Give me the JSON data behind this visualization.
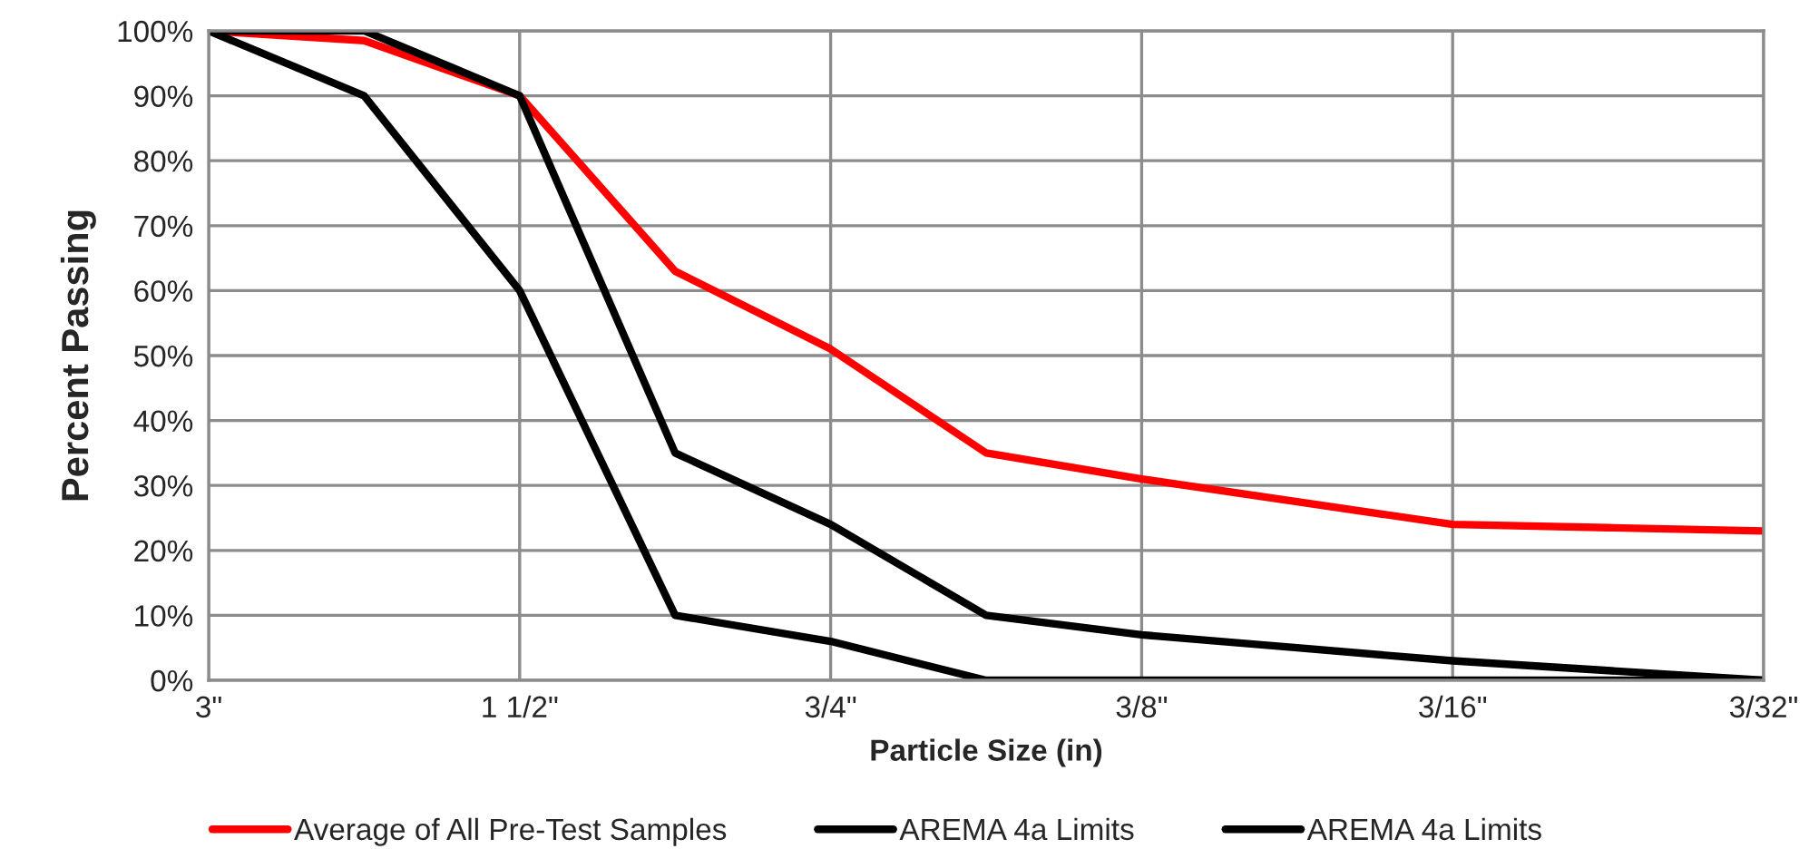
{
  "chart_data": {
    "type": "line",
    "xlabel": "Particle Size (in)",
    "ylabel": "Percent Passing",
    "categories": [
      "3\"",
      null,
      "1 1/2\"",
      null,
      "3/4\"",
      null,
      "3/8\"",
      null,
      "3/16\"",
      null,
      "3/32\""
    ],
    "ylim": [
      0,
      100
    ],
    "yticks": [
      {
        "value": 0,
        "label": "0%"
      },
      {
        "value": 10,
        "label": "10%"
      },
      {
        "value": 20,
        "label": "20%"
      },
      {
        "value": 30,
        "label": "30%"
      },
      {
        "value": 40,
        "label": "40%"
      },
      {
        "value": 50,
        "label": "50%"
      },
      {
        "value": 60,
        "label": "60%"
      },
      {
        "value": 70,
        "label": "70%"
      },
      {
        "value": 80,
        "label": "80%"
      },
      {
        "value": 90,
        "label": "90%"
      },
      {
        "value": 100,
        "label": "100%"
      }
    ],
    "grid": true,
    "legend": "bottom",
    "marker": "none",
    "line_style": "solid",
    "series": [
      {
        "name": "Average of All Pre-Test Samples",
        "color": "#ff0000",
        "values": [
          100,
          98.5,
          90,
          63,
          51,
          35,
          31,
          27.5,
          24,
          23.5,
          23
        ]
      },
      {
        "name": "AREMA 4a Limits",
        "color": "#000000",
        "values": [
          100,
          100,
          90,
          35,
          24,
          10,
          7,
          5,
          3,
          1.5,
          0
        ]
      },
      {
        "name": "AREMA 4a Limits",
        "color": "#000000",
        "values": [
          100,
          90,
          60,
          10,
          6,
          0,
          0,
          0,
          0,
          0,
          0
        ]
      }
    ]
  }
}
